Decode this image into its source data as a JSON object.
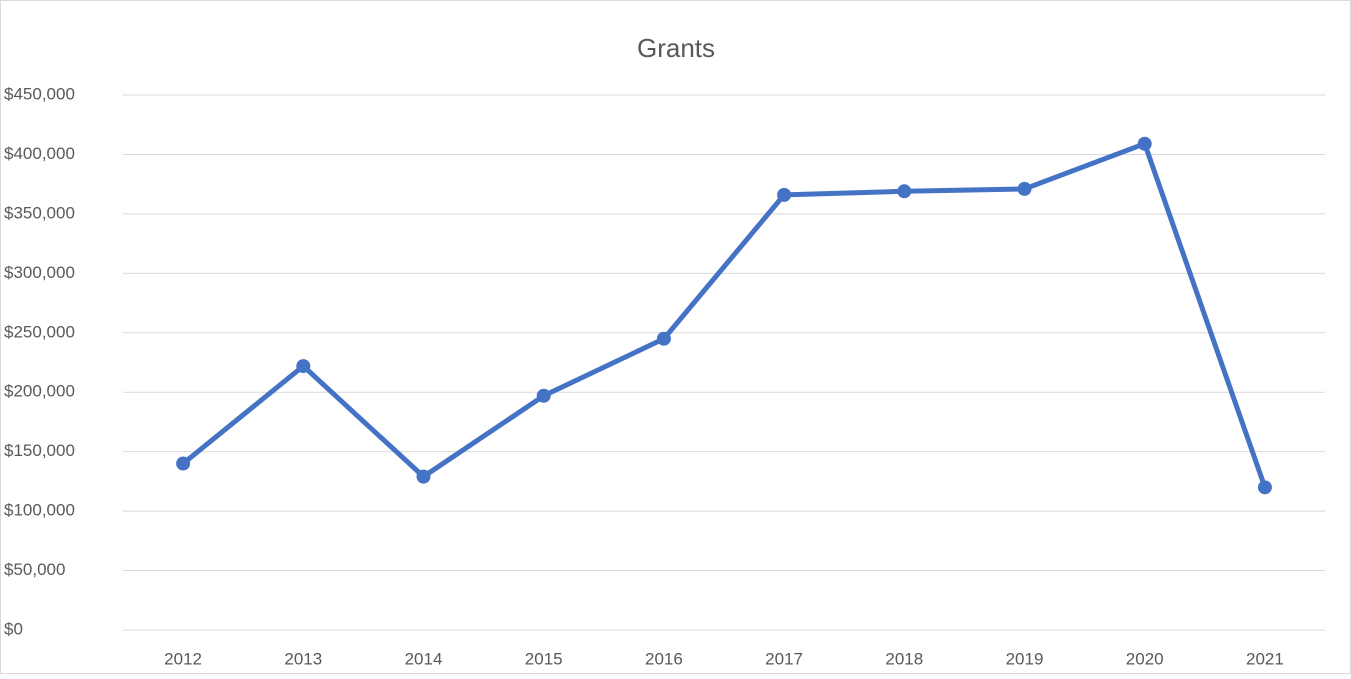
{
  "chart_data": {
    "type": "line",
    "title": "Grants",
    "categories": [
      "2012",
      "2013",
      "2014",
      "2015",
      "2016",
      "2017",
      "2018",
      "2019",
      "2020",
      "2021"
    ],
    "series": [
      {
        "name": "Grants",
        "color": "#4472c4",
        "values": [
          140000,
          222000,
          129000,
          197000,
          245000,
          366000,
          369000,
          371000,
          409000,
          120000
        ]
      }
    ],
    "ylim": [
      0,
      450000
    ],
    "yticks": [
      {
        "value": 0,
        "label": "$0"
      },
      {
        "value": 50000,
        "label": "$50,000"
      },
      {
        "value": 100000,
        "label": "$100,000"
      },
      {
        "value": 150000,
        "label": "$150,000"
      },
      {
        "value": 200000,
        "label": "$200,000"
      },
      {
        "value": 250000,
        "label": "$250,000"
      },
      {
        "value": 300000,
        "label": "$300,000"
      },
      {
        "value": 350000,
        "label": "$350,000"
      },
      {
        "value": 400000,
        "label": "$400,000"
      },
      {
        "value": 450000,
        "label": "$450,000"
      }
    ],
    "grid": true
  }
}
